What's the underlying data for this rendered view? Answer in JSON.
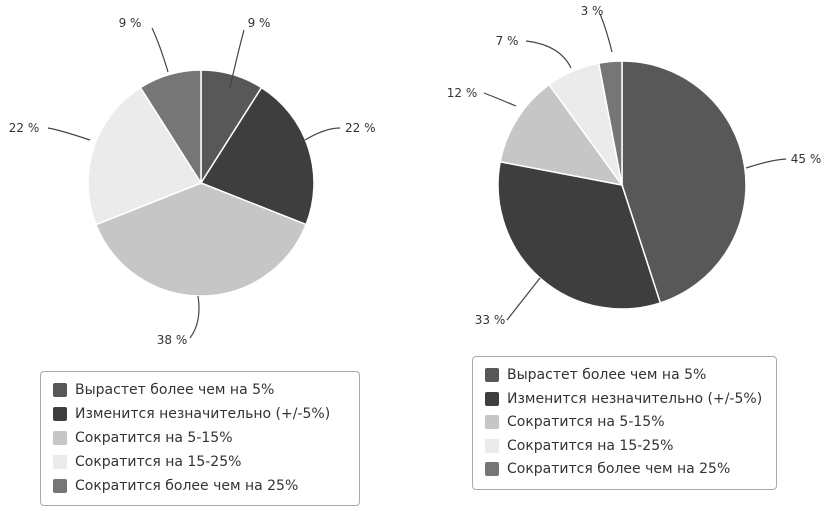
{
  "colors": [
    "#585858",
    "#3e3e3e",
    "#c6c6c6",
    "#ebebeb",
    "#767676"
  ],
  "legend": {
    "items": [
      "Вырастет более чем на 5%",
      "Изменится незначительно (+/-5%)",
      "Сократится на 5-15%",
      "Сократится на 15-25%",
      "Сократится более чем на 25%"
    ]
  },
  "chart_data": [
    {
      "type": "pie",
      "categories": [
        "Вырастет более чем на 5%",
        "Изменится незначительно (+/-5%)",
        "Сократится на 5-15%",
        "Сократится на 15-25%",
        "Сократится более чем на 25%"
      ],
      "values": [
        9,
        22,
        38,
        22,
        9
      ],
      "data_labels": [
        "9 %",
        "22 %",
        "38 %",
        "22 %",
        "9 %"
      ],
      "legend_position": "bottom"
    },
    {
      "type": "pie",
      "categories": [
        "Вырастет более чем на 5%",
        "Изменится незначительно (+/-5%)",
        "Сократится на 5-15%",
        "Сократится на 15-25%",
        "Сократится более чем на 25%"
      ],
      "values": [
        45,
        33,
        12,
        7,
        3
      ],
      "data_labels": [
        "45 %",
        "33 %",
        "12 %",
        "7 %",
        "3 %"
      ],
      "legend_position": "bottom"
    }
  ]
}
